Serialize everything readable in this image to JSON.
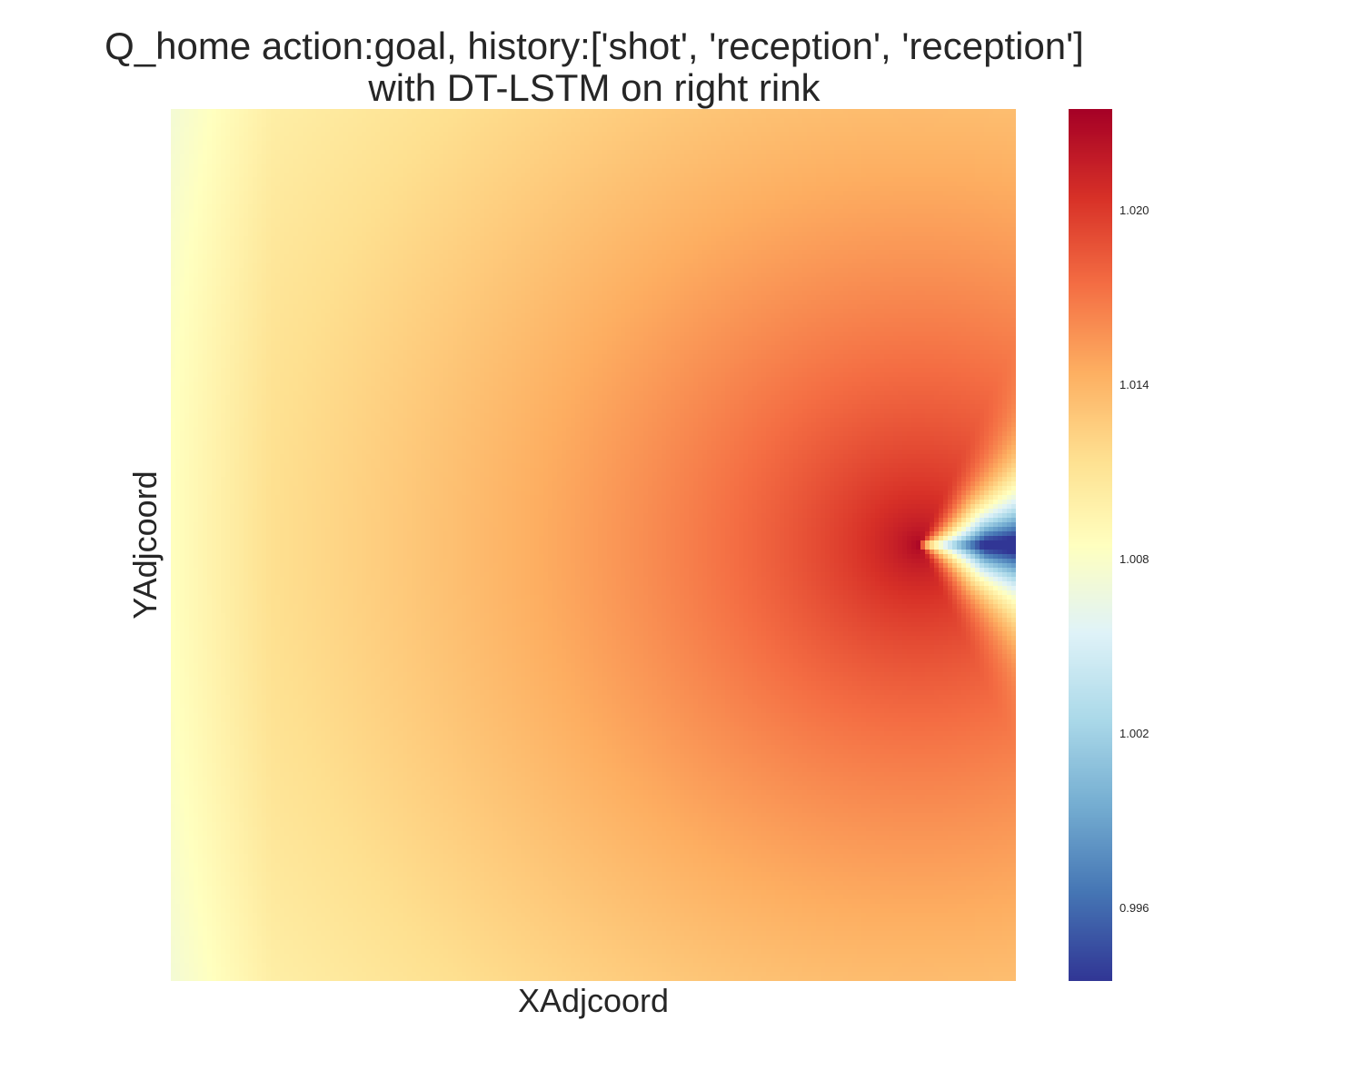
{
  "chart_data": {
    "type": "heatmap",
    "title": [
      "Q_home action:goal, history:['shot', 'reception', 'reception']",
      "with DT-LSTM on right rink"
    ],
    "xlabel": "XAdjcoord",
    "ylabel": "YAdjcoord",
    "colormap": "RdYlBu_r",
    "colorbar": {
      "vmin": 0.9935,
      "vmax": 1.0235,
      "ticks": [
        1.02,
        1.014,
        1.008,
        1.002,
        0.996
      ],
      "tick_labels": [
        "1.020",
        "1.014",
        "1.008",
        "1.002",
        "0.996"
      ]
    },
    "grid": false,
    "x_ticks_shown": false,
    "y_ticks_shown": false,
    "field": {
      "description_values": {
        "left_edge_value": 1.009,
        "peak_value": 1.0235,
        "peak_location_fraction_x": 0.885,
        "peak_location_fraction_y": 0.5,
        "minimum_value": 0.9935,
        "minimum_region": "right of peak along center row"
      }
    }
  }
}
